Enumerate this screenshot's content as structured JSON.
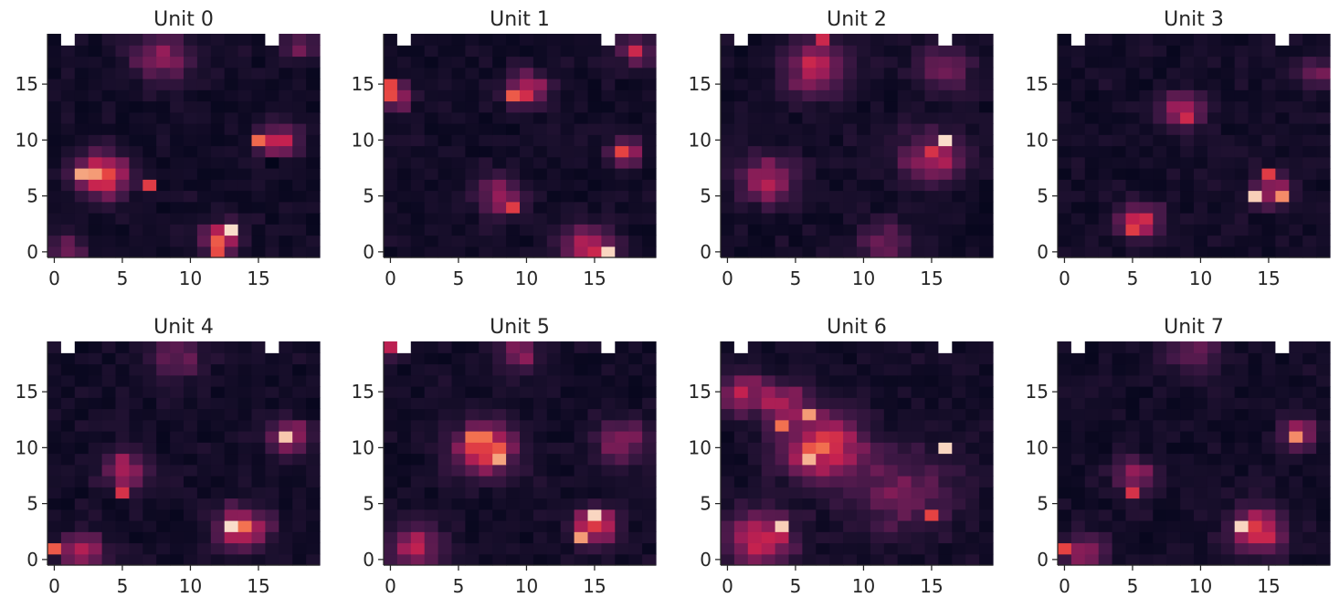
{
  "chart_data": [
    {
      "type": "heatmap",
      "title": "Unit 0",
      "grid_size": [
        20,
        20
      ],
      "xticks": [
        "0",
        "5",
        "10",
        "15"
      ],
      "yticks": [
        "0",
        "5",
        "10",
        "15"
      ],
      "value_range": [
        0,
        1
      ],
      "blanks": [
        [
          1,
          19
        ],
        [
          16,
          19
        ]
      ],
      "blobs": [
        {
          "x": 3.5,
          "y": 7.0,
          "amp": 0.8,
          "sigma": 1.3
        },
        {
          "x": 16.5,
          "y": 10.0,
          "amp": 0.58,
          "sigma": 1.0
        },
        {
          "x": 12.2,
          "y": 1.3,
          "amp": 0.7,
          "sigma": 0.9
        },
        {
          "x": 8.0,
          "y": 17.5,
          "amp": 0.35,
          "sigma": 1.6
        },
        {
          "x": 18.0,
          "y": 18.5,
          "amp": 0.35,
          "sigma": 0.8
        },
        {
          "x": 1.0,
          "y": 0.2,
          "amp": 0.28,
          "sigma": 1.0
        }
      ],
      "peaks": [
        {
          "x": 13,
          "y": 2,
          "value": 0.98
        },
        {
          "x": 2,
          "y": 7,
          "value": 0.9
        },
        {
          "x": 3,
          "y": 7,
          "value": 0.88
        },
        {
          "x": 15,
          "y": 10,
          "value": 0.78
        },
        {
          "x": 12,
          "y": 0,
          "value": 0.72
        },
        {
          "x": 7,
          "y": 6,
          "value": 0.68
        },
        {
          "x": 17,
          "y": 10,
          "value": 0.6
        },
        {
          "x": 16,
          "y": 8,
          "value": 0.0
        }
      ],
      "seed": 11
    },
    {
      "type": "heatmap",
      "title": "Unit 1",
      "grid_size": [
        20,
        20
      ],
      "xticks": [
        "0",
        "5",
        "10",
        "15"
      ],
      "yticks": [
        "0",
        "5",
        "10",
        "15"
      ],
      "value_range": [
        0,
        1
      ],
      "blanks": [
        [
          1,
          19
        ],
        [
          16,
          19
        ]
      ],
      "blobs": [
        {
          "x": 10.0,
          "y": 14.5,
          "amp": 0.6,
          "sigma": 1.0
        },
        {
          "x": 0.3,
          "y": 14.0,
          "amp": 0.65,
          "sigma": 0.8
        },
        {
          "x": 17.2,
          "y": 9.0,
          "amp": 0.6,
          "sigma": 0.8
        },
        {
          "x": 8.0,
          "y": 5.0,
          "amp": 0.4,
          "sigma": 1.2
        },
        {
          "x": 14.5,
          "y": 0.5,
          "amp": 0.55,
          "sigma": 1.3
        },
        {
          "x": 18.0,
          "y": 18.0,
          "amp": 0.45,
          "sigma": 0.8
        }
      ],
      "peaks": [
        {
          "x": 16,
          "y": 0,
          "value": 0.97
        },
        {
          "x": 9,
          "y": 14,
          "value": 0.75
        },
        {
          "x": 0,
          "y": 15,
          "value": 0.7
        },
        {
          "x": 17,
          "y": 9,
          "value": 0.7
        },
        {
          "x": 9,
          "y": 4,
          "value": 0.68
        },
        {
          "x": 18,
          "y": 18,
          "value": 0.62
        }
      ],
      "seed": 23
    },
    {
      "type": "heatmap",
      "title": "Unit 2",
      "grid_size": [
        20,
        20
      ],
      "xticks": [
        "0",
        "5",
        "10",
        "15"
      ],
      "yticks": [
        "0",
        "5",
        "10",
        "15"
      ],
      "value_range": [
        0,
        1
      ],
      "blanks": [
        [
          1,
          19
        ],
        [
          16,
          19
        ]
      ],
      "blobs": [
        {
          "x": 6.5,
          "y": 16.5,
          "amp": 0.52,
          "sigma": 1.6
        },
        {
          "x": 3.0,
          "y": 6.5,
          "amp": 0.5,
          "sigma": 1.4
        },
        {
          "x": 15.0,
          "y": 8.5,
          "amp": 0.48,
          "sigma": 1.6
        },
        {
          "x": 11.5,
          "y": 0.8,
          "amp": 0.35,
          "sigma": 1.2
        },
        {
          "x": 16.0,
          "y": 16.5,
          "amp": 0.3,
          "sigma": 1.4
        }
      ],
      "peaks": [
        {
          "x": 16,
          "y": 10,
          "value": 0.98
        },
        {
          "x": 15,
          "y": 9,
          "value": 0.65
        },
        {
          "x": 7,
          "y": 19,
          "value": 0.62
        }
      ],
      "seed": 37
    },
    {
      "type": "heatmap",
      "title": "Unit 3",
      "grid_size": [
        20,
        20
      ],
      "xticks": [
        "0",
        "5",
        "10",
        "15"
      ],
      "yticks": [
        "0",
        "5",
        "10",
        "15"
      ],
      "value_range": [
        0,
        1
      ],
      "blanks": [
        [
          1,
          19
        ],
        [
          16,
          19
        ]
      ],
      "blobs": [
        {
          "x": 8.7,
          "y": 12.7,
          "amp": 0.6,
          "sigma": 1.0
        },
        {
          "x": 5.5,
          "y": 2.8,
          "amp": 0.55,
          "sigma": 1.1
        },
        {
          "x": 15.2,
          "y": 5.5,
          "amp": 0.5,
          "sigma": 1.0
        },
        {
          "x": 18.5,
          "y": 16.0,
          "amp": 0.4,
          "sigma": 0.8
        }
      ],
      "peaks": [
        {
          "x": 14,
          "y": 5,
          "value": 0.96
        },
        {
          "x": 16,
          "y": 5,
          "value": 0.85
        },
        {
          "x": 5,
          "y": 2,
          "value": 0.68
        },
        {
          "x": 15,
          "y": 7,
          "value": 0.68
        }
      ],
      "seed": 41
    },
    {
      "type": "heatmap",
      "title": "Unit 4",
      "grid_size": [
        20,
        20
      ],
      "xticks": [
        "0",
        "5",
        "10",
        "15"
      ],
      "yticks": [
        "0",
        "5",
        "10",
        "15"
      ],
      "value_range": [
        0,
        1
      ],
      "blanks": [
        [
          1,
          19
        ],
        [
          16,
          19
        ]
      ],
      "blobs": [
        {
          "x": 13.8,
          "y": 2.8,
          "amp": 0.65,
          "sigma": 1.3
        },
        {
          "x": 17.3,
          "y": 11.0,
          "amp": 0.55,
          "sigma": 1.0
        },
        {
          "x": 5.2,
          "y": 8.0,
          "amp": 0.5,
          "sigma": 1.1
        },
        {
          "x": 2.0,
          "y": 0.7,
          "amp": 0.5,
          "sigma": 1.1
        },
        {
          "x": 9.0,
          "y": 18.2,
          "amp": 0.3,
          "sigma": 1.4
        }
      ],
      "peaks": [
        {
          "x": 13,
          "y": 3,
          "value": 0.98
        },
        {
          "x": 17,
          "y": 11,
          "value": 0.95
        },
        {
          "x": 0,
          "y": 1,
          "value": 0.75
        },
        {
          "x": 5,
          "y": 6,
          "value": 0.65
        }
      ],
      "seed": 53
    },
    {
      "type": "heatmap",
      "title": "Unit 5",
      "grid_size": [
        20,
        20
      ],
      "xticks": [
        "0",
        "5",
        "10",
        "15"
      ],
      "yticks": [
        "0",
        "5",
        "10",
        "15"
      ],
      "value_range": [
        0,
        1
      ],
      "blanks": [
        [
          1,
          19
        ],
        [
          16,
          19
        ]
      ],
      "blobs": [
        {
          "x": 7.0,
          "y": 10.0,
          "amp": 0.75,
          "sigma": 1.5
        },
        {
          "x": 15.0,
          "y": 3.0,
          "amp": 0.7,
          "sigma": 1.1
        },
        {
          "x": 2.0,
          "y": 1.2,
          "amp": 0.45,
          "sigma": 1.4
        },
        {
          "x": 9.5,
          "y": 18.5,
          "amp": 0.4,
          "sigma": 1.0
        },
        {
          "x": 17.0,
          "y": 10.5,
          "amp": 0.4,
          "sigma": 1.3
        },
        {
          "x": 0.0,
          "y": 19.0,
          "amp": 0.5,
          "sigma": 0.6
        }
      ],
      "peaks": [
        {
          "x": 15,
          "y": 4,
          "value": 0.97
        },
        {
          "x": 8,
          "y": 9,
          "value": 0.9
        },
        {
          "x": 14,
          "y": 2,
          "value": 0.88
        },
        {
          "x": 6,
          "y": 11,
          "value": 0.8
        }
      ],
      "seed": 67
    },
    {
      "type": "heatmap",
      "title": "Unit 6",
      "grid_size": [
        20,
        20
      ],
      "xticks": [
        "0",
        "5",
        "10",
        "15"
      ],
      "yticks": [
        "0",
        "5",
        "10",
        "15"
      ],
      "value_range": [
        0,
        1
      ],
      "blanks": [
        [
          1,
          19
        ],
        [
          16,
          19
        ]
      ],
      "blobs": [
        {
          "x": 7.0,
          "y": 10.0,
          "amp": 0.7,
          "sigma": 2.0
        },
        {
          "x": 2.5,
          "y": 1.8,
          "amp": 0.7,
          "sigma": 1.6
        },
        {
          "x": 4.0,
          "y": 14.0,
          "amp": 0.5,
          "sigma": 1.2
        },
        {
          "x": 1.0,
          "y": 15.0,
          "amp": 0.4,
          "sigma": 1.3
        },
        {
          "x": 13.0,
          "y": 6.0,
          "amp": 0.3,
          "sigma": 2.5
        }
      ],
      "peaks": [
        {
          "x": 4,
          "y": 3,
          "value": 0.96
        },
        {
          "x": 16,
          "y": 10,
          "value": 0.97
        },
        {
          "x": 6,
          "y": 9,
          "value": 0.92
        },
        {
          "x": 6,
          "y": 13,
          "value": 0.88
        },
        {
          "x": 4,
          "y": 12,
          "value": 0.8
        },
        {
          "x": 15,
          "y": 4,
          "value": 0.7
        }
      ],
      "seed": 79
    },
    {
      "type": "heatmap",
      "title": "Unit 7",
      "grid_size": [
        20,
        20
      ],
      "xticks": [
        "0",
        "5",
        "10",
        "15"
      ],
      "yticks": [
        "0",
        "5",
        "10",
        "15"
      ],
      "value_range": [
        0,
        1
      ],
      "blanks": [
        [
          1,
          19
        ],
        [
          16,
          19
        ]
      ],
      "blobs": [
        {
          "x": 14.3,
          "y": 2.6,
          "amp": 0.65,
          "sigma": 1.3
        },
        {
          "x": 17.2,
          "y": 11.2,
          "amp": 0.5,
          "sigma": 0.9
        },
        {
          "x": 5.2,
          "y": 7.5,
          "amp": 0.45,
          "sigma": 1.0
        },
        {
          "x": 1.5,
          "y": 0.7,
          "amp": 0.45,
          "sigma": 1.1
        },
        {
          "x": 9.5,
          "y": 18.3,
          "amp": 0.28,
          "sigma": 1.4
        }
      ],
      "peaks": [
        {
          "x": 13,
          "y": 3,
          "value": 0.97
        },
        {
          "x": 17,
          "y": 11,
          "value": 0.85
        },
        {
          "x": 0,
          "y": 1,
          "value": 0.7
        },
        {
          "x": 5,
          "y": 6,
          "value": 0.65
        }
      ],
      "seed": 97
    }
  ]
}
